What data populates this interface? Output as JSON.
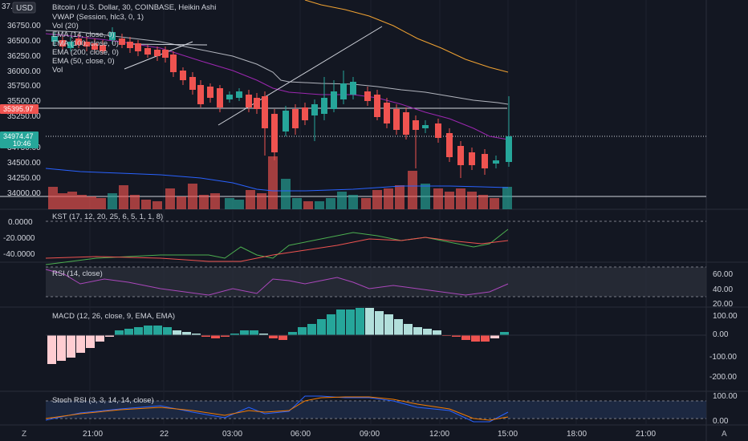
{
  "header": {
    "title": "Bitcoin / U.S. Dollar, 30, COINBASE, Heikin Ashi",
    "currency_button": "USD",
    "indicators": [
      "VWAP (Session, hlc3, 0, 1)",
      "Vol (20)",
      "EMA (14, close, 0)",
      "EMA (100, close, 0)",
      "EMA (200, close, 0)",
      "EMA (50, close, 0)",
      "Vol"
    ]
  },
  "price_axis": {
    "ticks": [
      "36750.00",
      "36500.00",
      "36250.00",
      "36000.00",
      "35750.00",
      "35500.00",
      "35250.00",
      "34750.00",
      "34500.00",
      "34250.00",
      "34000.00"
    ],
    "top_tick": "37...",
    "marker_red": "35395.97",
    "marker_green": "34974.47",
    "marker_time": "10:46"
  },
  "time_axis": {
    "ticks": [
      "21:00",
      "22",
      "03:00",
      "06:00",
      "09:00",
      "12:00",
      "15:00",
      "18:00",
      "21:00"
    ],
    "left_icon": "Z",
    "right_icon": "A"
  },
  "panes": {
    "kst": {
      "label": "KST (17, 12, 20, 25, 6, 5, 1, 1, 8)",
      "ticks": [
        "0.0000",
        "-20.0000",
        "-40.0000"
      ]
    },
    "rsi": {
      "label": "RSI (14, close)",
      "ticks": [
        "60.00",
        "40.00",
        "20.00"
      ]
    },
    "macd": {
      "label": "MACD (12, 26, close, 9, EMA, EMA)",
      "ticks": [
        "100.00",
        "0.00",
        "-100.00",
        "-200.00"
      ]
    },
    "stoch": {
      "label": "Stoch RSI (3, 3, 14, 14, close)",
      "ticks": [
        "100.00",
        "0.00"
      ]
    }
  },
  "colors": {
    "up": "#26a69a",
    "down": "#ef5350",
    "background": "#131722",
    "vwap": "#b2b5be",
    "ema_orange": "#f0a232",
    "ema_purple": "#9c27b0",
    "ema_blue": "#2962ff"
  }
}
